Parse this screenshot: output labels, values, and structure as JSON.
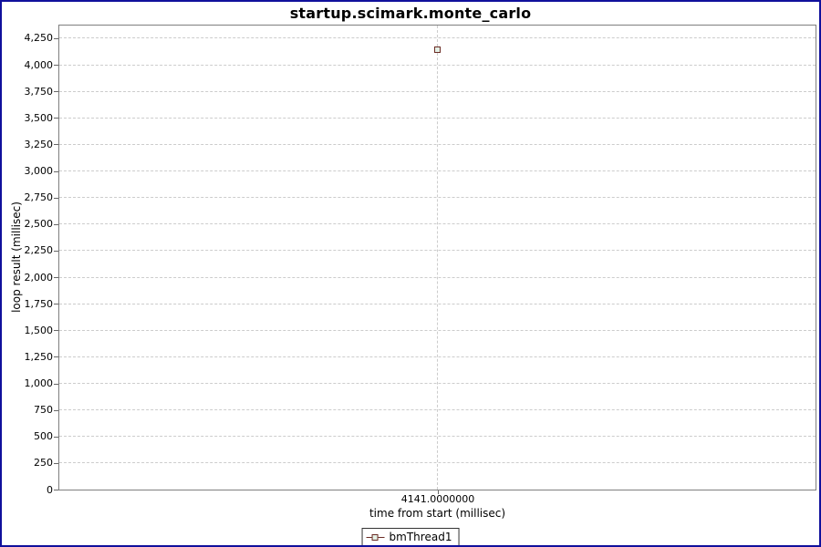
{
  "window": {
    "background": "#FFFFFF",
    "border_color": "#10109C"
  },
  "chart_data": {
    "type": "scatter",
    "title": "startup.scimark.monte_carlo",
    "xlabel": "time from start (millisec)",
    "ylabel": "loop result (millisec)",
    "ylim": [
      0,
      4370
    ],
    "grid": {
      "style": "dashed",
      "color": "#CCCCCC",
      "horizontal": true,
      "vertical": true
    },
    "plot_border_color": "#7F7F7F",
    "legend_position": "bottom",
    "y_ticks": [
      {
        "value": 0,
        "label": "0"
      },
      {
        "value": 250,
        "label": "250"
      },
      {
        "value": 500,
        "label": "500"
      },
      {
        "value": 750,
        "label": "750"
      },
      {
        "value": 1000,
        "label": "1,000"
      },
      {
        "value": 1250,
        "label": "1,250"
      },
      {
        "value": 1500,
        "label": "1,500"
      },
      {
        "value": 1750,
        "label": "1,750"
      },
      {
        "value": 2000,
        "label": "2,000"
      },
      {
        "value": 2250,
        "label": "2,250"
      },
      {
        "value": 2500,
        "label": "2,500"
      },
      {
        "value": 2750,
        "label": "2,750"
      },
      {
        "value": 3000,
        "label": "3,000"
      },
      {
        "value": 3250,
        "label": "3,250"
      },
      {
        "value": 3500,
        "label": "3,500"
      },
      {
        "value": 3750,
        "label": "3,750"
      },
      {
        "value": 4000,
        "label": "4,000"
      },
      {
        "value": 4250,
        "label": "4,250"
      }
    ],
    "x_ticks": [
      {
        "label": "4141.0000000",
        "fraction": 0.5
      }
    ],
    "series": [
      {
        "name": "bmThread1",
        "marker": "square",
        "stroke_color": "#6B2C25",
        "fill_color": "#E4F0E6",
        "points": [
          {
            "x": 4141.0,
            "y": 4141,
            "x_fraction": 0.5
          }
        ]
      }
    ]
  },
  "legend": {
    "items": [
      {
        "label": "bmThread1"
      }
    ]
  }
}
